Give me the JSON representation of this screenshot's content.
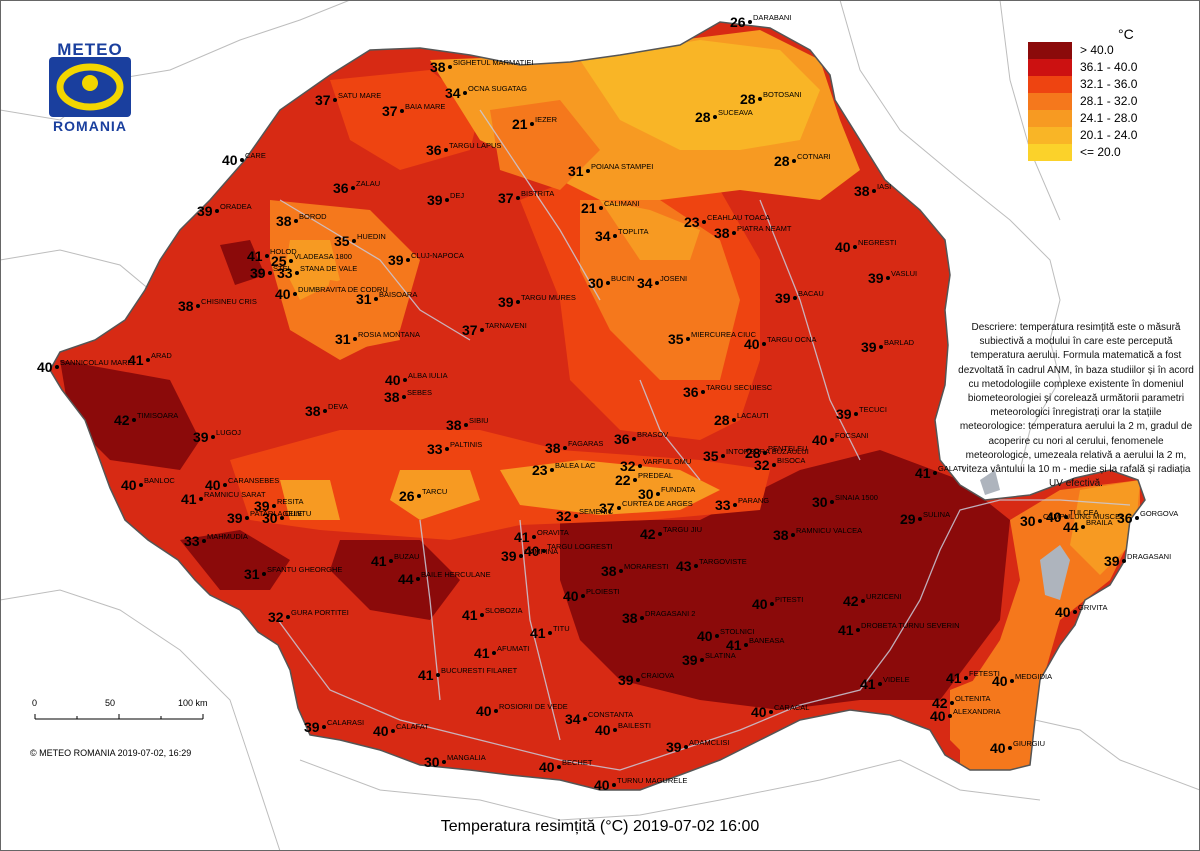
{
  "logo": {
    "top": "METEO",
    "bottom": "ROMANIA"
  },
  "legend": {
    "unit": "°C",
    "classes": [
      {
        "label": "> 40.0",
        "color": "#8b0a0a"
      },
      {
        "label": "36.1 - 40.0",
        "color": "#cc1111"
      },
      {
        "label": "32.1 - 36.0",
        "color": "#ee4411"
      },
      {
        "label": "28.1 - 32.0",
        "color": "#f5781c"
      },
      {
        "label": "24.1 - 28.0",
        "color": "#f79a22"
      },
      {
        "label": "20.1 - 24.0",
        "color": "#f9b526"
      },
      {
        "label": "<= 20.0",
        "color": "#fbd22a"
      }
    ]
  },
  "description": "Descriere: temperatura resimțită este o măsură subiectivă a modului în care este percepută temperatura aerului. Formula matematică a fost dezvoltată în cadrul ANM, în baza studiilor și în acord cu metodologiile complexe existente în domeniul biometeorologiei și corelează următorii parametri meteorologici înregistrați orar la stațiile meteorologice: temperatura aerului la 2 m, gradul de acoperire cu nori al cerului, fenomenele meteorologice, umezeala relativă a aerului la 2 m, viteza vântului la 10 m - medie și la rafală și radiația UV efectivă.",
  "scale": {
    "labels": [
      "0",
      "50",
      "100 km"
    ]
  },
  "copyright": "© METEO ROMANIA 2019-07-02, 16:29",
  "title": "Temperatura resimțită (°C) 2019-07-02 16:00",
  "stations": [
    {
      "name": "DARABANI",
      "value": "26"
    },
    {
      "name": "SIGHETUL MARMATIEI",
      "value": "38"
    },
    {
      "name": "OCNA SUGATAG",
      "value": "34"
    },
    {
      "name": "SATU MARE",
      "value": "37"
    },
    {
      "name": "BAIA MARE",
      "value": "37"
    },
    {
      "name": "BOTOSANI",
      "value": "28"
    },
    {
      "name": "IEZER",
      "value": "21"
    },
    {
      "name": "SUCEAVA",
      "value": "28"
    },
    {
      "name": "TARGU LAPUS",
      "value": "36"
    },
    {
      "name": "CARE",
      "value": "40"
    },
    {
      "name": "POIANA STAMPEI",
      "value": "31"
    },
    {
      "name": "COTNARI",
      "value": "28"
    },
    {
      "name": "ZALAU",
      "value": "36"
    },
    {
      "name": "IASI",
      "value": "38"
    },
    {
      "name": "BISTRITA",
      "value": "37"
    },
    {
      "name": "DEJ",
      "value": "39"
    },
    {
      "name": "ORADEA",
      "value": "39"
    },
    {
      "name": "CALIMANI",
      "value": "21"
    },
    {
      "name": "BOROD",
      "value": "38"
    },
    {
      "name": "PIATRA NEAMT",
      "value": "38"
    },
    {
      "name": "CEAHLAU TOACA",
      "value": "23"
    },
    {
      "name": "TOPLITA",
      "value": "34"
    },
    {
      "name": "HUEDIN",
      "value": "35"
    },
    {
      "name": "NEGRESTI",
      "value": "40"
    },
    {
      "name": "HOLOD",
      "value": "41"
    },
    {
      "name": "VLADEASA 1800",
      "value": "25"
    },
    {
      "name": "CLUJ-NAPOCA",
      "value": "39"
    },
    {
      "name": "VASLUI",
      "value": "39"
    },
    {
      "name": "CHISINEU CRIS",
      "value": "38"
    },
    {
      "name": "DUMBRAVITA DE CODRU",
      "value": "40"
    },
    {
      "name": "STANA DE VALE",
      "value": "33"
    },
    {
      "name": "STEI",
      "value": "39"
    },
    {
      "name": "JOSENI",
      "value": "34"
    },
    {
      "name": "BUCIN",
      "value": "30"
    },
    {
      "name": "BAISOARA",
      "value": "31"
    },
    {
      "name": "TARGU MURES",
      "value": "39"
    },
    {
      "name": "BACAU",
      "value": "39"
    },
    {
      "name": "MIERCUREA CIUC",
      "value": "35"
    },
    {
      "name": "TARNAVENI",
      "value": "37"
    },
    {
      "name": "ROSIA MONTANA",
      "value": "31"
    },
    {
      "name": "TARGU OCNA",
      "value": "40"
    },
    {
      "name": "BARLAD",
      "value": "39"
    },
    {
      "name": "SANNICOLAU MARE",
      "value": "40"
    },
    {
      "name": "ARAD",
      "value": "41"
    },
    {
      "name": "ALBA IULIA",
      "value": "40"
    },
    {
      "name": "TARGU SECUIESC",
      "value": "36"
    },
    {
      "name": "SEBES",
      "value": "38"
    },
    {
      "name": "DEVA",
      "value": "38"
    },
    {
      "name": "TECUCI",
      "value": "39"
    },
    {
      "name": "TIMISOARA",
      "value": "42"
    },
    {
      "name": "LACAUTI",
      "value": "28"
    },
    {
      "name": "SIBIU",
      "value": "38"
    },
    {
      "name": "FAGARAS",
      "value": "38"
    },
    {
      "name": "LUGOJ",
      "value": "39"
    },
    {
      "name": "INTORSURA BUZAULUI",
      "value": "35"
    },
    {
      "name": "BRASOV",
      "value": "36"
    },
    {
      "name": "FOCSANI",
      "value": "40"
    },
    {
      "name": "PALTINIS",
      "value": "33"
    },
    {
      "name": "BALEA LAC",
      "value": "23"
    },
    {
      "name": "VARFUL OMU",
      "value": "32"
    },
    {
      "name": "PENTELEU",
      "value": "28"
    },
    {
      "name": "BISOCA",
      "value": "32"
    },
    {
      "name": "GALATI",
      "value": "41"
    },
    {
      "name": "BANLOC",
      "value": "40"
    },
    {
      "name": "CARANSEBES",
      "value": "40"
    },
    {
      "name": "PREDEAL",
      "value": "22"
    },
    {
      "name": "FUNDATA",
      "value": "30"
    },
    {
      "name": "SINAIA 1500",
      "value": "30"
    },
    {
      "name": "RAMNICU SARAT",
      "value": "41"
    },
    {
      "name": "RESITA",
      "value": "39"
    },
    {
      "name": "CUNTU",
      "value": "30"
    },
    {
      "name": "TARCU",
      "value": "26"
    },
    {
      "name": "PARANG",
      "value": "33"
    },
    {
      "name": "PATARLAGELE",
      "value": "39"
    },
    {
      "name": "SEMENIC",
      "value": "32"
    },
    {
      "name": "CURTEA DE ARGES",
      "value": "37"
    },
    {
      "name": "CAMPULUNG MUSCEL",
      "value": "30"
    },
    {
      "name": "TULCEA",
      "value": "40"
    },
    {
      "name": "GORGOVA",
      "value": "36"
    },
    {
      "name": "SULINA",
      "value": "29"
    },
    {
      "name": "BRAILA",
      "value": "44"
    },
    {
      "name": "MAHMUDIA",
      "value": "33"
    },
    {
      "name": "ORAVITA",
      "value": "41"
    },
    {
      "name": "RAMNICU VALCEA",
      "value": "38"
    },
    {
      "name": "BUZAU",
      "value": "41"
    },
    {
      "name": "TARGU JIU",
      "value": "42"
    },
    {
      "name": "CAMPINA",
      "value": "39"
    },
    {
      "name": "DRAGASANI",
      "value": "39"
    },
    {
      "name": "SFANTU GHEORGHE",
      "value": "31"
    },
    {
      "name": "BAILE HERCULANE",
      "value": "44"
    },
    {
      "name": "TARGU LOGRESTI",
      "value": "40"
    },
    {
      "name": "MORARESTI",
      "value": "38"
    },
    {
      "name": "TARGOVISTE",
      "value": "43"
    },
    {
      "name": "PLOIESTI",
      "value": "40"
    },
    {
      "name": "PITESTI",
      "value": "40"
    },
    {
      "name": "URZICENI",
      "value": "42"
    },
    {
      "name": "GRIVITA",
      "value": "40"
    },
    {
      "name": "GURA PORTITEI",
      "value": "32"
    },
    {
      "name": "DROBETA TURNU SEVERIN",
      "value": "41"
    },
    {
      "name": "SLOBOZIA",
      "value": "41"
    },
    {
      "name": "DRAGASANI 2",
      "value": "38"
    },
    {
      "name": "TITU",
      "value": "41"
    },
    {
      "name": "STOLNICI",
      "value": "40"
    },
    {
      "name": "BANEASA",
      "value": "41"
    },
    {
      "name": "AFUMATI",
      "value": "41"
    },
    {
      "name": "SLATINA",
      "value": "39"
    },
    {
      "name": "BUCURESTI FILARET",
      "value": "41"
    },
    {
      "name": "CRAIOVA",
      "value": "39"
    },
    {
      "name": "VIDELE",
      "value": "41"
    },
    {
      "name": "FETESTI",
      "value": "41"
    },
    {
      "name": "MEDGIDIA",
      "value": "40"
    },
    {
      "name": "CONSTANTA",
      "value": "34"
    },
    {
      "name": "ROSIORII DE VEDE",
      "value": "40"
    },
    {
      "name": "CARACAL",
      "value": "40"
    },
    {
      "name": "OLTENITA",
      "value": "42"
    },
    {
      "name": "CALARASI",
      "value": "39"
    },
    {
      "name": "CALAFAT",
      "value": "40"
    },
    {
      "name": "BAILESTI",
      "value": "40"
    },
    {
      "name": "ALEXANDRIA",
      "value": "40"
    },
    {
      "name": "ADAMCLISI",
      "value": "39"
    },
    {
      "name": "GIURGIU",
      "value": "40"
    },
    {
      "name": "MANGALIA",
      "value": "30"
    },
    {
      "name": "BECHET",
      "value": "40"
    },
    {
      "name": "TURNU MAGURELE",
      "value": "40"
    },
    {
      "name": "ZIMNICEA",
      "value": "41"
    }
  ]
}
